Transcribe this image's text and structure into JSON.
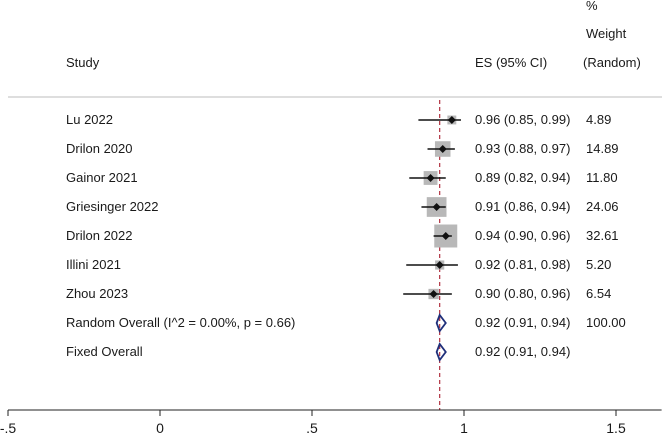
{
  "header": {
    "study": "Study",
    "es": "ES (95% CI)",
    "weight_line1": "%",
    "weight_line2": "Weight",
    "weight_line3": "(Random)"
  },
  "chart_data": {
    "type": "forest",
    "x_ticks": [
      -0.5,
      0,
      0.5,
      1,
      1.5
    ],
    "x_tick_labels": [
      "-.5",
      "0",
      ".5",
      "1",
      "1.5"
    ],
    "xlim": [
      -0.5,
      1.65
    ],
    "reference_line": 0.92,
    "colors": {
      "reference_line": "#b03040",
      "diamond": "#1f2f7a",
      "weight_box": "#b8b8b8",
      "point": "#111111"
    },
    "studies": [
      {
        "name": "Lu 2022",
        "es": 0.96,
        "lo": 0.85,
        "hi": 0.99,
        "label": "0.96 (0.85, 0.99)",
        "weight": 4.89,
        "weight_label": "4.89"
      },
      {
        "name": "Drilon 2020",
        "es": 0.93,
        "lo": 0.88,
        "hi": 0.97,
        "label": "0.93 (0.88, 0.97)",
        "weight": 14.89,
        "weight_label": "14.89"
      },
      {
        "name": "Gainor 2021",
        "es": 0.89,
        "lo": 0.82,
        "hi": 0.94,
        "label": "0.89 (0.82, 0.94)",
        "weight": 11.8,
        "weight_label": "11.80"
      },
      {
        "name": "Griesinger 2022",
        "es": 0.91,
        "lo": 0.86,
        "hi": 0.94,
        "label": "0.91 (0.86, 0.94)",
        "weight": 24.06,
        "weight_label": "24.06"
      },
      {
        "name": "Drilon 2022",
        "es": 0.94,
        "lo": 0.9,
        "hi": 0.96,
        "label": "0.94 (0.90, 0.96)",
        "weight": 32.61,
        "weight_label": "32.61"
      },
      {
        "name": "Illini 2021",
        "es": 0.92,
        "lo": 0.81,
        "hi": 0.98,
        "label": "0.92 (0.81, 0.98)",
        "weight": 5.2,
        "weight_label": "5.20"
      },
      {
        "name": "Zhou 2023",
        "es": 0.9,
        "lo": 0.8,
        "hi": 0.96,
        "label": "0.90 (0.80, 0.96)",
        "weight": 6.54,
        "weight_label": "6.54"
      }
    ],
    "overall": [
      {
        "name": "Random Overall  (I^2 = 0.00%, p = 0.66)",
        "es": 0.92,
        "lo": 0.91,
        "hi": 0.94,
        "label": "0.92 (0.91, 0.94)",
        "weight_label": "100.00"
      },
      {
        "name": "Fixed Overall",
        "es": 0.92,
        "lo": 0.91,
        "hi": 0.94,
        "label": "0.92 (0.91, 0.94)",
        "weight_label": ""
      }
    ]
  }
}
